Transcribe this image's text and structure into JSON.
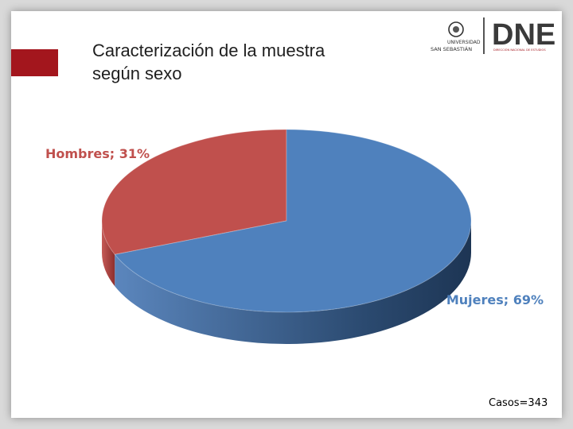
{
  "slide": {
    "title_line1": "Caracterización de la muestra",
    "title_line2": "según sexo",
    "cases_note": "Casos=343"
  },
  "logos": {
    "university_name_line1": "UNIVERSIDAD",
    "university_name_line2": "SAN SEBASTIÁN",
    "dne_text": "DNE",
    "dne_subtitle": "DIRECCIÓN NACIONAL DE ESTUDIOS"
  },
  "colors": {
    "accent": "#a3161d",
    "mujeres": "#4f81bd",
    "hombres": "#c0504d"
  },
  "chart_data": {
    "type": "pie",
    "title": "",
    "categories": [
      "Hombres",
      "Mujeres"
    ],
    "values": [
      31,
      69
    ],
    "labels": [
      "Hombres; 31%",
      "Mujeres; 69%"
    ],
    "style": "3d"
  }
}
